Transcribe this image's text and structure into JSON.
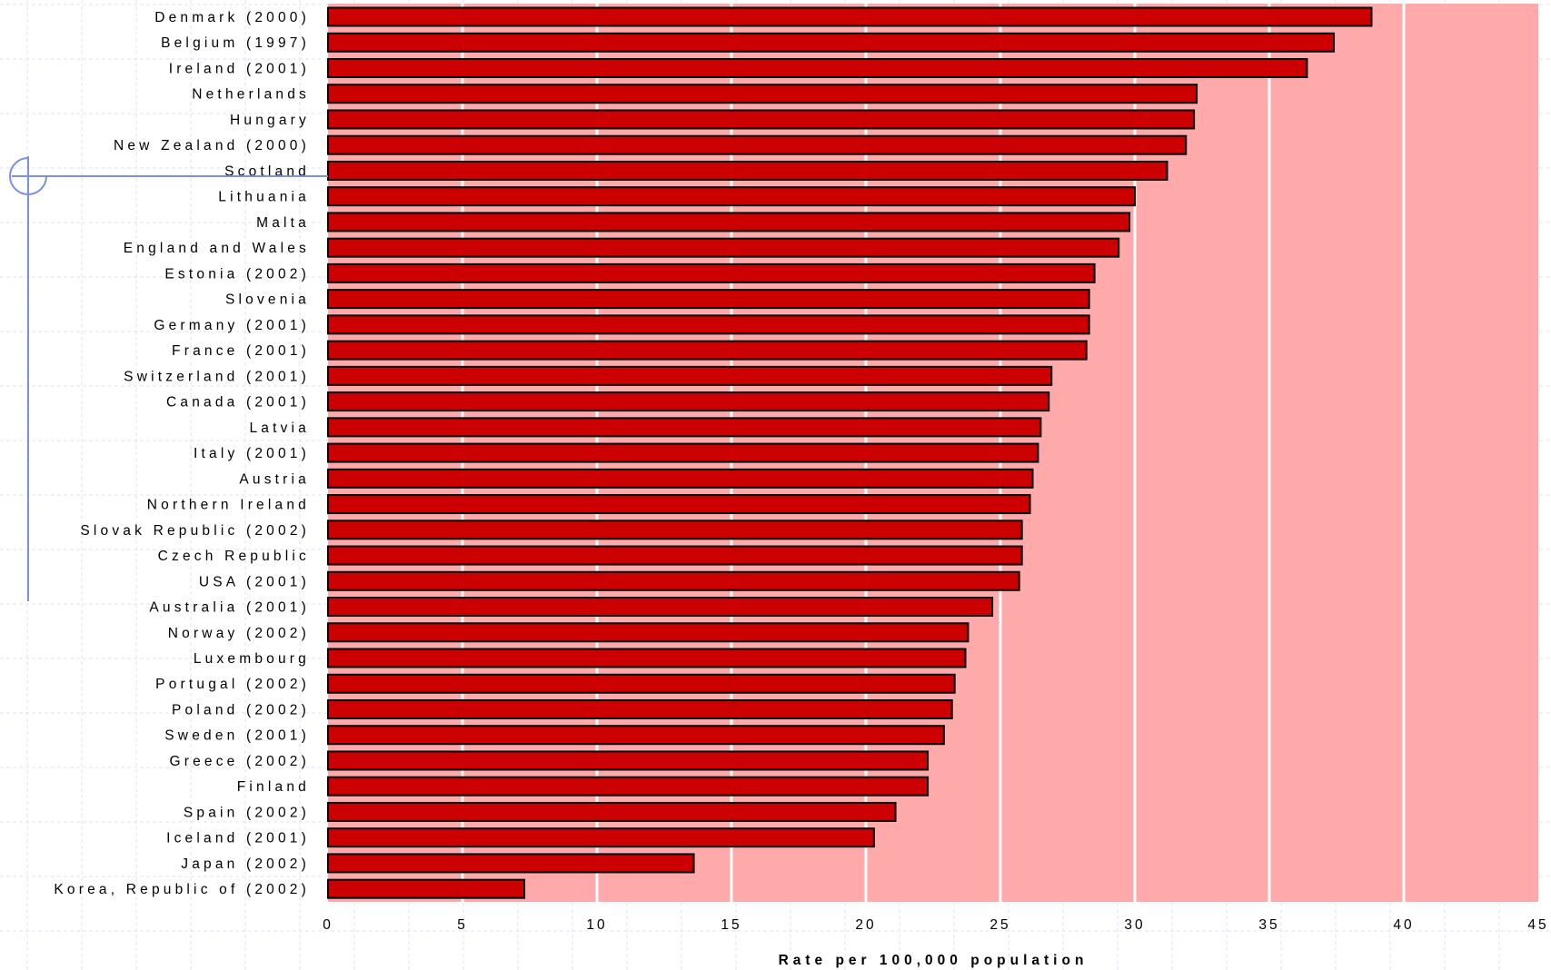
{
  "chart_data": {
    "type": "bar",
    "orientation": "horizontal",
    "categories": [
      "Denmark (2000)",
      "Belgium (1997)",
      "Ireland (2001)",
      "Netherlands",
      "Hungary",
      "New Zealand (2000)",
      "Scotland",
      "Lithuania",
      "Malta",
      "England and Wales",
      "Estonia (2002)",
      "Slovenia",
      "Germany (2001)",
      "France (2001)",
      "Switzerland (2001)",
      "Canada (2001)",
      "Latvia",
      "Italy (2001)",
      "Austria",
      "Northern Ireland",
      "Slovak Republic (2002)",
      "Czech Republic",
      "USA (2001)",
      "Australia (2001)",
      "Norway (2002)",
      "Luxembourg",
      "Portugal (2002)",
      "Poland (2002)",
      "Sweden (2001)",
      "Greece (2002)",
      "Finland",
      "Spain (2002)",
      "Iceland (2001)",
      "Japan (2002)",
      "Korea, Republic of (2002)"
    ],
    "values": [
      38.8,
      37.4,
      36.4,
      32.3,
      32.2,
      31.9,
      31.2,
      30.0,
      29.8,
      29.4,
      28.5,
      28.3,
      28.3,
      28.2,
      26.9,
      26.8,
      26.5,
      26.4,
      26.2,
      26.1,
      25.8,
      25.8,
      25.7,
      24.7,
      23.8,
      23.7,
      23.3,
      23.2,
      22.9,
      22.3,
      22.3,
      21.1,
      20.3,
      13.6,
      7.3
    ],
    "xlabel": "Rate per 100,000 population",
    "ylabel": "",
    "xlim": [
      0,
      45
    ],
    "xticks": [
      "0",
      "5",
      "10",
      "15",
      "20",
      "25",
      "30",
      "35",
      "40",
      "45"
    ],
    "grid": true,
    "colors": {
      "bar": "#cc0000",
      "bar_edge": "#000000",
      "plot_background": "#ffaaaa",
      "gridline": "#ffffff",
      "page_grid": "#dde3f5",
      "ornament": "#7b8fe8"
    }
  }
}
